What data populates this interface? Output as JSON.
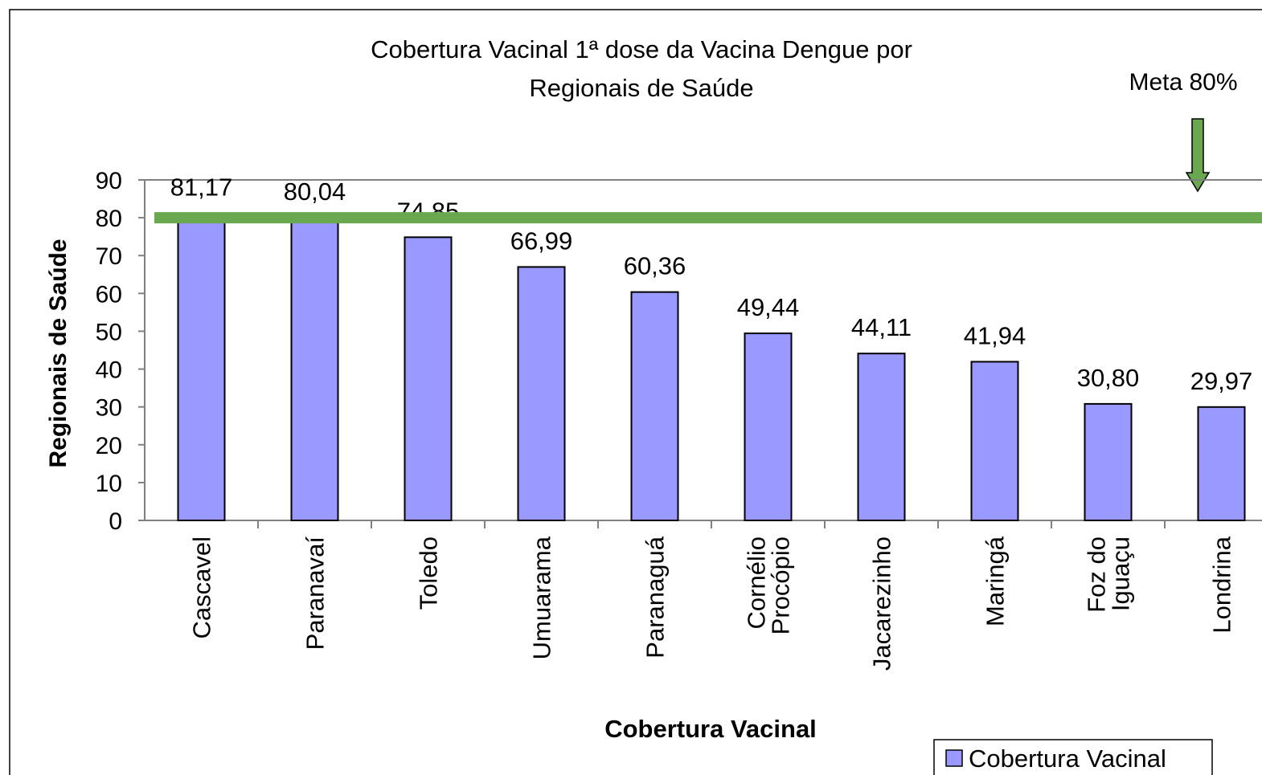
{
  "chart_data": {
    "type": "bar",
    "title": [
      "Cobertura Vacinal 1ª dose da Vacina Dengue por",
      "Regionais de Saúde"
    ],
    "y_label": "Regionais de Saúde",
    "x_label": "Cobertura Vacinal",
    "categories": [
      "Cascavel",
      "Paranavaí",
      "Toledo",
      "Umuarama",
      "Paranaguá",
      [
        "Cornélio",
        "Procópio"
      ],
      "Jacarezinho",
      "Maringá",
      [
        "Foz do",
        "Iguaçu"
      ],
      "Londrina"
    ],
    "series": [
      {
        "name": "Cobertura Vacinal",
        "color": "#9999ff",
        "values": [
          81.17,
          80.04,
          74.85,
          66.99,
          60.36,
          49.44,
          44.11,
          41.94,
          30.8,
          29.97
        ],
        "value_labels": [
          "81,17",
          "80,04",
          "74,85",
          "66,99",
          "60,36",
          "49,44",
          "44,11",
          "41,94",
          "30,80",
          "29,97"
        ]
      }
    ],
    "ylim": [
      0,
      90
    ],
    "yticks": [
      0,
      10,
      20,
      30,
      40,
      50,
      60,
      70,
      80,
      90
    ],
    "target": {
      "value": 80,
      "label": "Meta 80%",
      "color": "#6aa84f"
    },
    "legend": "bottom-right"
  }
}
